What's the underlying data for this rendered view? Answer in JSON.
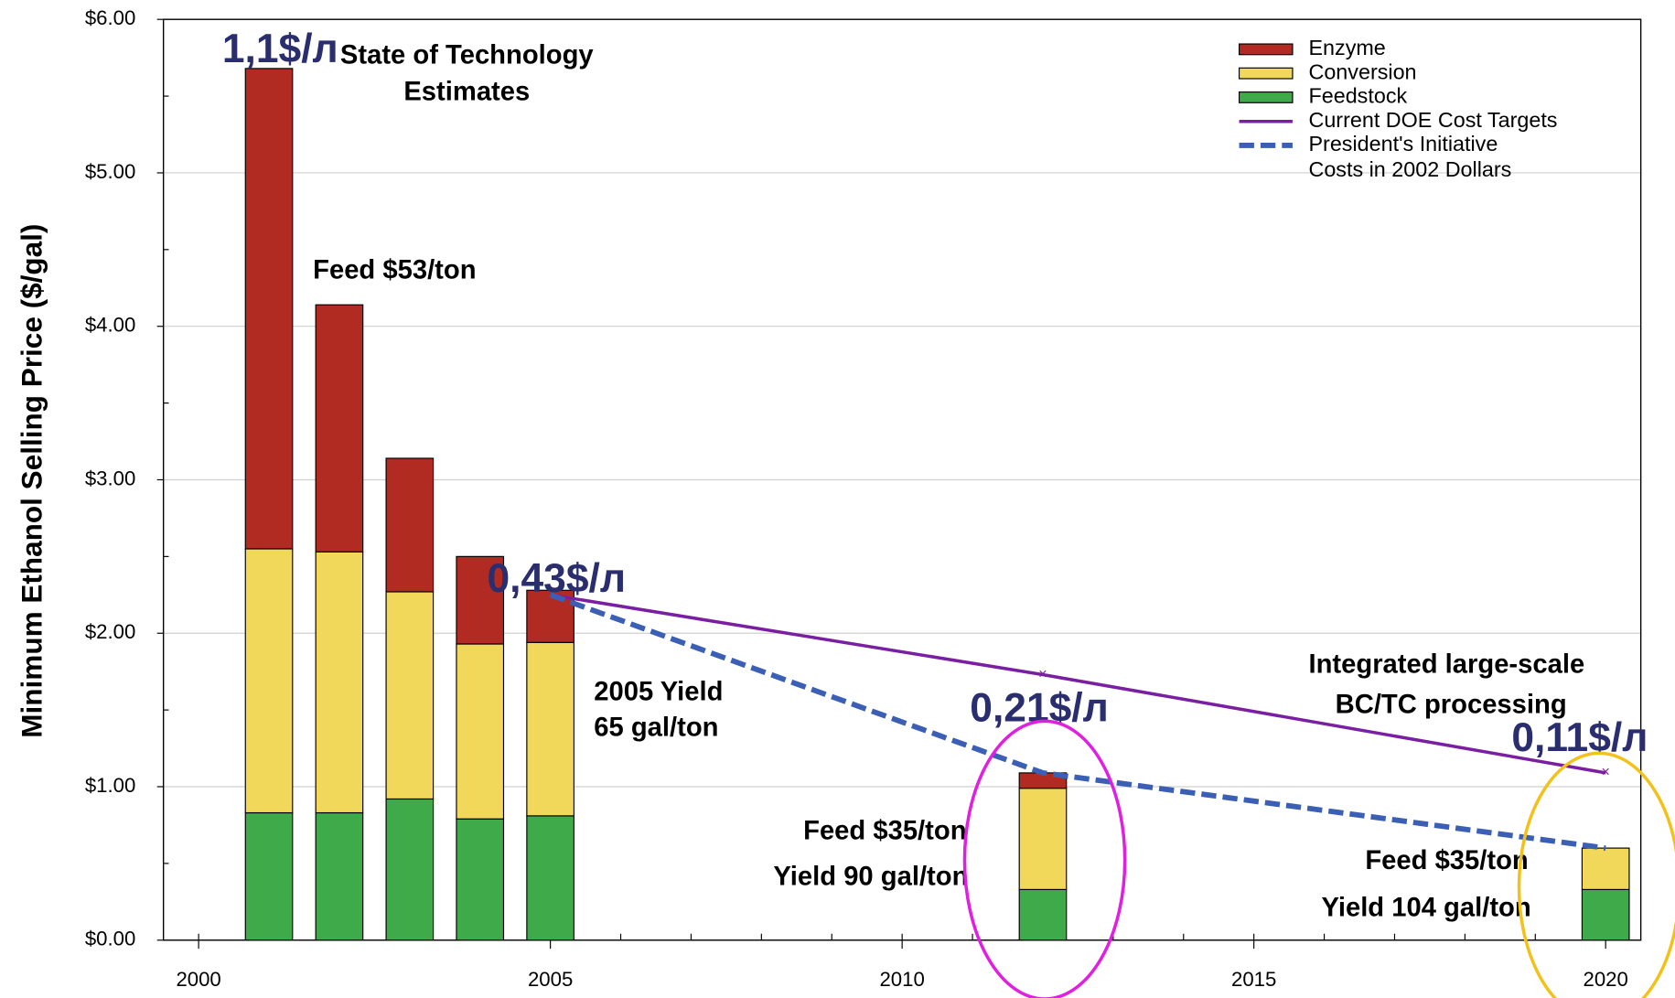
{
  "chart_data": {
    "type": "bar",
    "stacked": true,
    "y_label": "Minimum Ethanol Selling Price ($/gal)",
    "x": [
      2001,
      2002,
      2003,
      2004,
      2005,
      2012,
      2020
    ],
    "xlim": [
      1999.5,
      2020.5
    ],
    "xticks": [
      2000,
      2005,
      2010,
      2015,
      2020
    ],
    "ylim": [
      0,
      6
    ],
    "yticks": [
      {
        "value": 0,
        "label": "$0.00"
      },
      {
        "value": 1,
        "label": "$1.00"
      },
      {
        "value": 2,
        "label": "$2.00"
      },
      {
        "value": 3,
        "label": "$3.00"
      },
      {
        "value": 4,
        "label": "$4.00"
      },
      {
        "value": 5,
        "label": "$5.00"
      },
      {
        "value": 6,
        "label": "$6.00"
      }
    ],
    "grid": true,
    "legend": "upper right",
    "legend_note": "Costs in 2002 Dollars",
    "series": [
      {
        "name": "Feedstock",
        "type": "bar",
        "color": "#3faa4a",
        "values": [
          0.83,
          0.83,
          0.92,
          0.79,
          0.81,
          0.33,
          0.33
        ]
      },
      {
        "name": "Conversion",
        "type": "bar",
        "color": "#f2d85a",
        "values": [
          1.72,
          1.7,
          1.35,
          1.14,
          1.13,
          0.66,
          0.27
        ]
      },
      {
        "name": "Enzyme",
        "type": "bar",
        "color": "#b22b22",
        "values": [
          3.13,
          1.61,
          0.87,
          0.57,
          0.34,
          0.1,
          0
        ]
      },
      {
        "name": "Current DOE Cost Targets",
        "type": "line",
        "color": "#7a1fa2",
        "values": [
          null,
          null,
          null,
          null,
          2.25,
          1.73,
          1.09
        ]
      },
      {
        "name": "President's Initiative",
        "type": "line",
        "dashed": true,
        "color": "#3a5fb5",
        "values": [
          null,
          null,
          null,
          null,
          2.25,
          1.09,
          0.6
        ]
      }
    ],
    "annotations": [
      "State of Technology",
      "Estimates",
      "Feed $53/ton",
      "2005 Yield",
      "65 gal/ton",
      "Feed $35/ton",
      "Yield 90 gal/ton",
      "Integrated large-scale",
      "BC/TC processing",
      "Feed $35/ton",
      "Yield 104 gal/ton"
    ],
    "callouts": [
      "1,1$/л",
      "0,43$/л",
      "0,21$/л",
      "0,11$/л"
    ]
  }
}
